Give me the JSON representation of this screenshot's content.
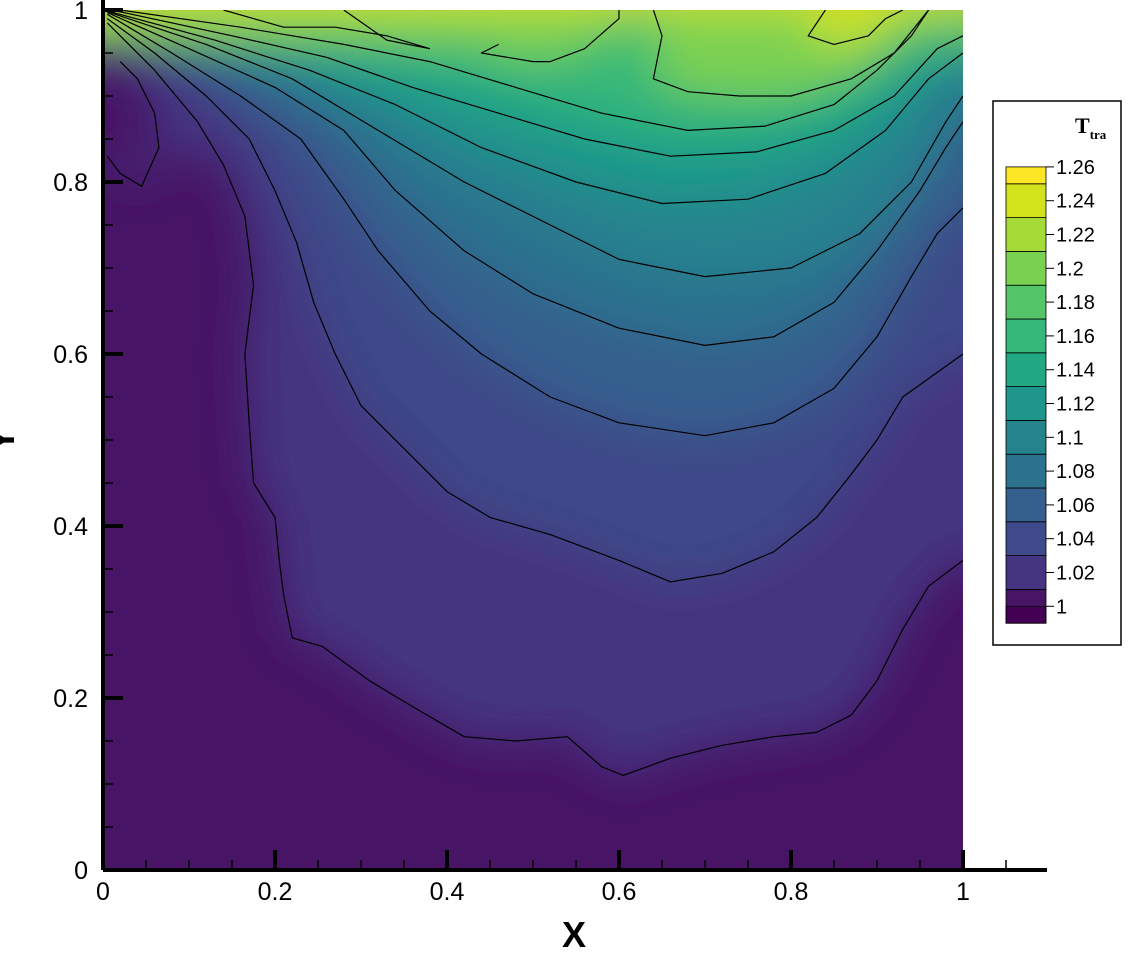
{
  "chart_data": {
    "type": "heatmap",
    "subtype": "filled-contour",
    "xlabel": "X",
    "ylabel": "Y",
    "xlim": [
      0,
      1
    ],
    "ylim": [
      0,
      1
    ],
    "x_ticks": [
      0,
      0.2,
      0.4,
      0.6,
      0.8,
      1
    ],
    "y_ticks": [
      0,
      0.2,
      0.4,
      0.6,
      0.8,
      1
    ],
    "x_tick_labels": [
      "0",
      "0.2",
      "0.4",
      "0.6",
      "0.8",
      "1"
    ],
    "y_tick_labels": [
      "0",
      "0.2",
      "0.4",
      "0.6",
      "0.8",
      "1"
    ],
    "colorbar": {
      "title_main": "T",
      "title_sub": "tra",
      "placement": "right",
      "levels": [
        1,
        1.02,
        1.04,
        1.06,
        1.08,
        1.1,
        1.12,
        1.14,
        1.16,
        1.18,
        1.2,
        1.22,
        1.24,
        1.26
      ],
      "labels": [
        "1",
        "1.02",
        "1.04",
        "1.06",
        "1.08",
        "1.1",
        "1.12",
        "1.14",
        "1.16",
        "1.18",
        "1.2",
        "1.22",
        "1.24",
        "1.26"
      ],
      "colors": [
        "#440154",
        "#471466",
        "#453480",
        "#3e4a89",
        "#355f8d",
        "#2c728e",
        "#25838e",
        "#1f968b",
        "#22a785",
        "#35b779",
        "#54c568",
        "#7ad151",
        "#a5db36",
        "#d2e21b",
        "#fde725"
      ]
    },
    "contour_lines": [
      {
        "level": 1.02,
        "points": [
          [
            0.02,
            0.94
          ],
          [
            0.04,
            0.92
          ],
          [
            0.06,
            0.88
          ],
          [
            0.065,
            0.84
          ],
          [
            0.045,
            0.795
          ],
          [
            0.02,
            0.81
          ],
          [
            0.005,
            0.83
          ]
        ]
      },
      {
        "level": 1.02,
        "points": [
          [
            0.005,
            0.985
          ],
          [
            0.06,
            0.93
          ],
          [
            0.11,
            0.87
          ],
          [
            0.14,
            0.82
          ],
          [
            0.165,
            0.76
          ],
          [
            0.175,
            0.68
          ],
          [
            0.165,
            0.6
          ],
          [
            0.17,
            0.52
          ],
          [
            0.175,
            0.45
          ],
          [
            0.2,
            0.41
          ],
          [
            0.205,
            0.36
          ],
          [
            0.21,
            0.32
          ],
          [
            0.22,
            0.27
          ],
          [
            0.255,
            0.26
          ],
          [
            0.31,
            0.22
          ],
          [
            0.36,
            0.19
          ],
          [
            0.42,
            0.155
          ],
          [
            0.48,
            0.15
          ],
          [
            0.54,
            0.155
          ],
          [
            0.58,
            0.12
          ],
          [
            0.605,
            0.11
          ],
          [
            0.66,
            0.13
          ],
          [
            0.72,
            0.145
          ],
          [
            0.78,
            0.155
          ],
          [
            0.83,
            0.16
          ],
          [
            0.87,
            0.18
          ],
          [
            0.9,
            0.22
          ],
          [
            0.93,
            0.28
          ],
          [
            0.96,
            0.33
          ],
          [
            1.0,
            0.36
          ]
        ]
      },
      {
        "level": 1.04,
        "points": [
          [
            0.005,
            0.99
          ],
          [
            0.06,
            0.95
          ],
          [
            0.12,
            0.9
          ],
          [
            0.17,
            0.85
          ],
          [
            0.2,
            0.79
          ],
          [
            0.225,
            0.73
          ],
          [
            0.245,
            0.66
          ],
          [
            0.27,
            0.6
          ],
          [
            0.3,
            0.54
          ],
          [
            0.35,
            0.49
          ],
          [
            0.4,
            0.44
          ],
          [
            0.45,
            0.41
          ],
          [
            0.52,
            0.39
          ],
          [
            0.6,
            0.36
          ],
          [
            0.66,
            0.335
          ],
          [
            0.72,
            0.345
          ],
          [
            0.78,
            0.37
          ],
          [
            0.83,
            0.41
          ],
          [
            0.87,
            0.46
          ],
          [
            0.9,
            0.5
          ],
          [
            0.93,
            0.55
          ],
          [
            1.0,
            0.6
          ]
        ]
      },
      {
        "level": 1.06,
        "points": [
          [
            0.005,
            0.995
          ],
          [
            0.08,
            0.95
          ],
          [
            0.16,
            0.9
          ],
          [
            0.23,
            0.85
          ],
          [
            0.28,
            0.78
          ],
          [
            0.32,
            0.72
          ],
          [
            0.38,
            0.65
          ],
          [
            0.44,
            0.6
          ],
          [
            0.52,
            0.55
          ],
          [
            0.6,
            0.52
          ],
          [
            0.7,
            0.505
          ],
          [
            0.78,
            0.52
          ],
          [
            0.85,
            0.56
          ],
          [
            0.9,
            0.62
          ],
          [
            0.94,
            0.69
          ],
          [
            0.97,
            0.74
          ],
          [
            1.0,
            0.77
          ]
        ]
      },
      {
        "level": 1.08,
        "points": [
          [
            0.005,
            0.997
          ],
          [
            0.1,
            0.955
          ],
          [
            0.2,
            0.91
          ],
          [
            0.28,
            0.86
          ],
          [
            0.34,
            0.79
          ],
          [
            0.42,
            0.72
          ],
          [
            0.5,
            0.67
          ],
          [
            0.6,
            0.63
          ],
          [
            0.7,
            0.61
          ],
          [
            0.78,
            0.62
          ],
          [
            0.85,
            0.66
          ],
          [
            0.9,
            0.72
          ],
          [
            0.95,
            0.79
          ],
          [
            0.98,
            0.84
          ],
          [
            1.0,
            0.87
          ]
        ]
      },
      {
        "level": 1.1,
        "points": [
          [
            0.005,
            0.998
          ],
          [
            0.12,
            0.96
          ],
          [
            0.22,
            0.92
          ],
          [
            0.32,
            0.86
          ],
          [
            0.42,
            0.8
          ],
          [
            0.5,
            0.76
          ],
          [
            0.6,
            0.71
          ],
          [
            0.7,
            0.69
          ],
          [
            0.8,
            0.7
          ],
          [
            0.88,
            0.74
          ],
          [
            0.94,
            0.8
          ],
          [
            0.98,
            0.87
          ],
          [
            1.0,
            0.9
          ]
        ]
      },
      {
        "level": 1.12,
        "points": [
          [
            0.005,
            0.999
          ],
          [
            0.13,
            0.965
          ],
          [
            0.24,
            0.93
          ],
          [
            0.34,
            0.89
          ],
          [
            0.44,
            0.84
          ],
          [
            0.55,
            0.8
          ],
          [
            0.65,
            0.775
          ],
          [
            0.75,
            0.78
          ],
          [
            0.84,
            0.81
          ],
          [
            0.91,
            0.86
          ],
          [
            0.96,
            0.92
          ],
          [
            1.0,
            0.95
          ]
        ]
      },
      {
        "level": 1.14,
        "points": [
          [
            0.01,
            1.0
          ],
          [
            0.15,
            0.97
          ],
          [
            0.26,
            0.945
          ],
          [
            0.36,
            0.91
          ],
          [
            0.46,
            0.88
          ],
          [
            0.56,
            0.85
          ],
          [
            0.66,
            0.83
          ],
          [
            0.76,
            0.835
          ],
          [
            0.85,
            0.86
          ],
          [
            0.92,
            0.9
          ],
          [
            0.97,
            0.955
          ],
          [
            1.0,
            0.97
          ]
        ]
      },
      {
        "level": 1.16,
        "points": [
          [
            0.02,
            1.0
          ],
          [
            0.16,
            0.98
          ],
          [
            0.28,
            0.96
          ],
          [
            0.38,
            0.94
          ],
          [
            0.48,
            0.91
          ],
          [
            0.58,
            0.88
          ],
          [
            0.68,
            0.86
          ],
          [
            0.77,
            0.865
          ],
          [
            0.85,
            0.89
          ],
          [
            0.9,
            0.93
          ],
          [
            0.94,
            0.97
          ],
          [
            0.96,
            1.0
          ]
        ]
      },
      {
        "level": 1.18,
        "points": [
          [
            0.14,
            1.0
          ],
          [
            0.21,
            0.98
          ],
          [
            0.27,
            0.98
          ],
          [
            0.33,
            0.97
          ],
          [
            0.38,
            0.955
          ]
        ]
      },
      {
        "level": 1.18,
        "points": [
          [
            0.28,
            1.0
          ],
          [
            0.33,
            0.965
          ],
          [
            0.38,
            0.955
          ]
        ]
      },
      {
        "level": 1.2,
        "points": [
          [
            0.46,
            0.96
          ],
          [
            0.44,
            0.95
          ],
          [
            0.5,
            0.94
          ],
          [
            0.52,
            0.94
          ],
          [
            0.56,
            0.955
          ],
          [
            0.6,
            0.99
          ],
          [
            0.6,
            1.0
          ]
        ]
      },
      {
        "level": 1.2,
        "points": [
          [
            0.64,
            1.0
          ],
          [
            0.65,
            0.97
          ],
          [
            0.64,
            0.92
          ],
          [
            0.68,
            0.905
          ],
          [
            0.74,
            0.9
          ],
          [
            0.8,
            0.9
          ],
          [
            0.87,
            0.92
          ],
          [
            0.92,
            0.95
          ],
          [
            0.96,
            1.0
          ]
        ]
      },
      {
        "level": 1.24,
        "points": [
          [
            0.84,
            1.0
          ],
          [
            0.82,
            0.97
          ],
          [
            0.85,
            0.96
          ],
          [
            0.89,
            0.97
          ],
          [
            0.91,
            0.99
          ],
          [
            0.93,
            1.0
          ]
        ]
      }
    ]
  }
}
